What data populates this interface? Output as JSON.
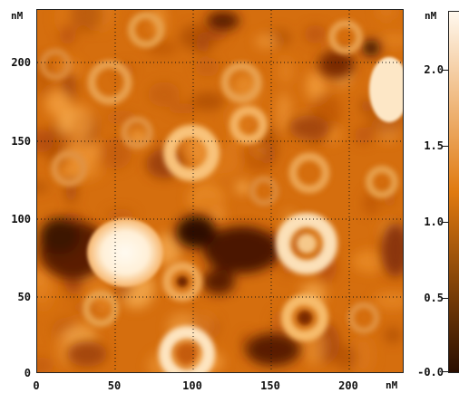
{
  "image": {
    "description_kind": "AFM height map",
    "x_unit": "nM",
    "y_unit": "nM",
    "x_ticks": [
      "0",
      "50",
      "100",
      "150",
      "200"
    ],
    "y_ticks": [
      "0",
      "50",
      "100",
      "150",
      "200"
    ],
    "colorbar": {
      "unit": "nM",
      "ticks": [
        "2.0",
        "1.5",
        "1.0",
        "0.5",
        "-0.0"
      ],
      "colors": {
        "low": "#2a0e00",
        "mid": "#e07a10",
        "high": "#fff8ee"
      }
    }
  }
}
